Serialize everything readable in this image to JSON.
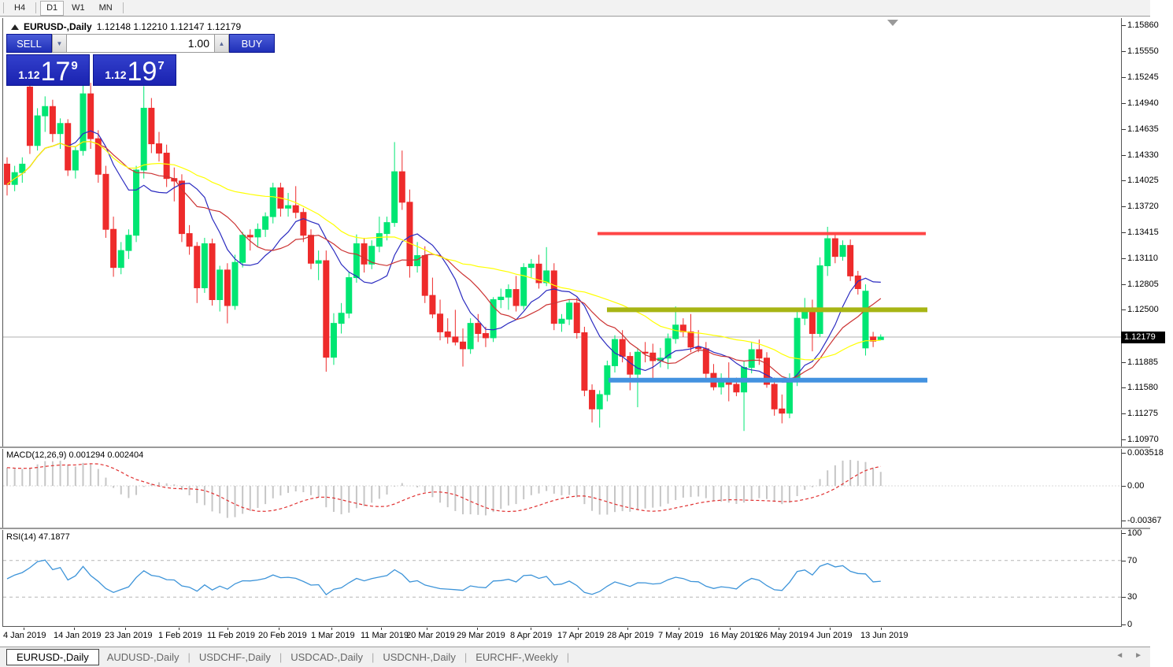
{
  "toolbar": {
    "timeframes": [
      {
        "label": "H4",
        "active": false
      },
      {
        "label": "D1",
        "active": true
      },
      {
        "label": "W1",
        "active": false
      },
      {
        "label": "MN",
        "active": false
      }
    ]
  },
  "chart_header": {
    "symbol": "EURUSD-,Daily",
    "ohlc_text": "1.12148 1.12210 1.12147 1.12179"
  },
  "trade_panel": {
    "sell_label": "SELL",
    "buy_label": "BUY",
    "volume": "1.00",
    "sell_quote": {
      "prefix": "1.12",
      "big": "17",
      "pip": "9"
    },
    "buy_quote": {
      "prefix": "1.12",
      "big": "19",
      "pip": "7"
    }
  },
  "indicators": {
    "macd_label": "MACD(12,26,9) 0.001294 0.002404",
    "rsi_label": "RSI(14) 47.1877"
  },
  "price_axis": {
    "ticks": [
      "1.15860",
      "1.15550",
      "1.15245",
      "1.14940",
      "1.14635",
      "1.14330",
      "1.14025",
      "1.13720",
      "1.13415",
      "1.13110",
      "1.12805",
      "1.12500",
      "1.11885",
      "1.11580",
      "1.11275",
      "1.10970"
    ],
    "current": "1.12179"
  },
  "macd_axis": [
    "0.003518",
    "0.00",
    "-0.00367"
  ],
  "rsi_axis": [
    "100",
    "70",
    "30",
    "0"
  ],
  "tabs": [
    {
      "label": "EURUSD-,Daily",
      "active": true
    },
    {
      "label": "AUDUSD-,Daily",
      "active": false
    },
    {
      "label": "USDCHF-,Daily",
      "active": false
    },
    {
      "label": "USDCAD-,Daily",
      "active": false
    },
    {
      "label": "USDCNH-,Daily",
      "active": false
    },
    {
      "label": "EURCHF-,Weekly",
      "active": false
    }
  ],
  "chart_data": {
    "type": "candlestick",
    "title": "EURUSD-,Daily",
    "ylim": [
      1.1097,
      1.1586
    ],
    "grid": false,
    "x_step": 9.65,
    "x_labels": [
      {
        "text": "4 Jan 2019",
        "x": 1
      },
      {
        "text": "14 Jan 2019",
        "x": 65
      },
      {
        "text": "23 Jan 2019",
        "x": 130
      },
      {
        "text": "1 Feb 2019",
        "x": 198
      },
      {
        "text": "11 Feb 2019",
        "x": 260
      },
      {
        "text": "20 Feb 2019",
        "x": 325
      },
      {
        "text": "1 Mar 2019",
        "x": 392
      },
      {
        "text": "11 Mar 2019",
        "x": 455
      },
      {
        "text": "20 Mar 2019",
        "x": 513
      },
      {
        "text": "29 Mar 2019",
        "x": 577
      },
      {
        "text": "8 Apr 2019",
        "x": 645
      },
      {
        "text": "17 Apr 2019",
        "x": 705
      },
      {
        "text": "28 Apr 2019",
        "x": 768
      },
      {
        "text": "7 May 2019",
        "x": 833
      },
      {
        "text": "16 May 2019",
        "x": 898
      },
      {
        "text": "26 May 2019",
        "x": 960
      },
      {
        "text": "4 Jun 2019",
        "x": 1025
      },
      {
        "text": "13 Jun 2019",
        "x": 1090
      }
    ],
    "current_price": 1.12179,
    "hlines": [
      {
        "name": "resistance-red",
        "price": 1.134,
        "x1": 755,
        "x2": 1172,
        "width": 4,
        "color": "#ff4646"
      },
      {
        "name": "pivot-olive",
        "price": 1.125,
        "x1": 767,
        "x2": 1174,
        "width": 6,
        "color": "#a7b514"
      },
      {
        "name": "support-blue",
        "price": 1.1167,
        "x1": 769,
        "x2": 1174,
        "width": 6,
        "color": "#4392e0"
      }
    ],
    "moving_averages": [
      {
        "name": "ma-fast",
        "period": 9,
        "color": "#2b2bc0"
      },
      {
        "name": "ma-mid",
        "period": 13,
        "color": "#cc3333"
      },
      {
        "name": "ma-slow",
        "period": 34,
        "color": "#ffff00"
      }
    ],
    "macd": {
      "fast": 12,
      "slow": 26,
      "signal": 9,
      "value": 0.001294,
      "signal_value": 0.002404,
      "hist_color": "#c6c6c6",
      "signal_color": "#e03030",
      "ymax": 0.003518,
      "ymin": -0.00367
    },
    "rsi": {
      "period": 14,
      "value": 47.1877,
      "color": "#3d94d9",
      "levels": [
        70,
        30
      ]
    },
    "colors": {
      "up": "#00e673",
      "down": "#ee2b2b",
      "price_line": "#b0b0b0"
    },
    "candles": [
      [
        1.1422,
        1.143,
        1.1385,
        1.1398
      ],
      [
        1.1398,
        1.142,
        1.139,
        1.1412
      ],
      [
        1.1412,
        1.143,
        1.14,
        1.1422
      ],
      [
        1.1513,
        1.152,
        1.1434,
        1.1444
      ],
      [
        1.1444,
        1.1488,
        1.1438,
        1.1479
      ],
      [
        1.1479,
        1.1502,
        1.146,
        1.149
      ],
      [
        1.149,
        1.1498,
        1.1448,
        1.1458
      ],
      [
        1.1458,
        1.1476,
        1.144,
        1.147
      ],
      [
        1.147,
        1.1475,
        1.1408,
        1.1415
      ],
      [
        1.1415,
        1.1442,
        1.1405,
        1.1438
      ],
      [
        1.1438,
        1.1515,
        1.1432,
        1.1505
      ],
      [
        1.1505,
        1.1518,
        1.144,
        1.1452
      ],
      [
        1.1452,
        1.1462,
        1.14,
        1.141
      ],
      [
        1.141,
        1.142,
        1.1335,
        1.1345
      ],
      [
        1.1345,
        1.136,
        1.1289,
        1.13
      ],
      [
        1.13,
        1.133,
        1.1292,
        1.132
      ],
      [
        1.132,
        1.1345,
        1.131,
        1.1338
      ],
      [
        1.1338,
        1.142,
        1.133,
        1.1415
      ],
      [
        1.1415,
        1.1514,
        1.1405,
        1.1488
      ],
      [
        1.1488,
        1.15,
        1.1435,
        1.1446
      ],
      [
        1.1446,
        1.146,
        1.1425,
        1.1435
      ],
      [
        1.1435,
        1.1445,
        1.1395,
        1.1405
      ],
      [
        1.1405,
        1.1418,
        1.1378,
        1.1402
      ],
      [
        1.1402,
        1.141,
        1.133,
        1.134
      ],
      [
        1.134,
        1.135,
        1.1315,
        1.1325
      ],
      [
        1.1325,
        1.133,
        1.1258,
        1.1276
      ],
      [
        1.1276,
        1.1335,
        1.127,
        1.1328
      ],
      [
        1.1328,
        1.1334,
        1.1255,
        1.1262
      ],
      [
        1.1262,
        1.1302,
        1.1248,
        1.1297
      ],
      [
        1.1297,
        1.1305,
        1.1234,
        1.1255
      ],
      [
        1.1255,
        1.1315,
        1.125,
        1.1306
      ],
      [
        1.1306,
        1.1342,
        1.13,
        1.1338
      ],
      [
        1.1338,
        1.1345,
        1.132,
        1.1336
      ],
      [
        1.1336,
        1.1352,
        1.1325,
        1.1345
      ],
      [
        1.1345,
        1.1365,
        1.1336,
        1.136
      ],
      [
        1.136,
        1.14,
        1.1352,
        1.1394
      ],
      [
        1.1394,
        1.14,
        1.136,
        1.137
      ],
      [
        1.137,
        1.1388,
        1.136,
        1.1373
      ],
      [
        1.1373,
        1.1396,
        1.1358,
        1.1365
      ],
      [
        1.1365,
        1.137,
        1.133,
        1.1338
      ],
      [
        1.1338,
        1.1345,
        1.1298,
        1.1305
      ],
      [
        1.1305,
        1.132,
        1.1285,
        1.1308
      ],
      [
        1.1308,
        1.132,
        1.1177,
        1.1194
      ],
      [
        1.1194,
        1.1246,
        1.1185,
        1.1234
      ],
      [
        1.1234,
        1.1258,
        1.1222,
        1.1246
      ],
      [
        1.1246,
        1.1295,
        1.124,
        1.1288
      ],
      [
        1.1288,
        1.1339,
        1.1282,
        1.1328
      ],
      [
        1.1328,
        1.1335,
        1.1294,
        1.1304
      ],
      [
        1.1304,
        1.1332,
        1.1298,
        1.1325
      ],
      [
        1.1325,
        1.136,
        1.1318,
        1.134
      ],
      [
        1.134,
        1.136,
        1.1332,
        1.1353
      ],
      [
        1.1353,
        1.1448,
        1.1348,
        1.1413
      ],
      [
        1.1413,
        1.1438,
        1.1368,
        1.1377
      ],
      [
        1.1377,
        1.1392,
        1.1288,
        1.1302
      ],
      [
        1.1302,
        1.133,
        1.1294,
        1.1314
      ],
      [
        1.1314,
        1.1325,
        1.1258,
        1.1267
      ],
      [
        1.1267,
        1.1288,
        1.124,
        1.1245
      ],
      [
        1.1245,
        1.1262,
        1.1214,
        1.1224
      ],
      [
        1.1224,
        1.124,
        1.121,
        1.1218
      ],
      [
        1.1218,
        1.125,
        1.1208,
        1.1212
      ],
      [
        1.1212,
        1.1228,
        1.1183,
        1.1204
      ],
      [
        1.1204,
        1.124,
        1.1198,
        1.1234
      ],
      [
        1.1234,
        1.1245,
        1.1212,
        1.1222
      ],
      [
        1.1222,
        1.123,
        1.1206,
        1.1217
      ],
      [
        1.1217,
        1.1265,
        1.1212,
        1.1262
      ],
      [
        1.1262,
        1.1275,
        1.1252,
        1.1265
      ],
      [
        1.1265,
        1.128,
        1.125,
        1.1274
      ],
      [
        1.1274,
        1.129,
        1.1248,
        1.1255
      ],
      [
        1.1255,
        1.1305,
        1.125,
        1.13
      ],
      [
        1.13,
        1.131,
        1.1288,
        1.1304
      ],
      [
        1.1304,
        1.1315,
        1.1275,
        1.1282
      ],
      [
        1.1282,
        1.1324,
        1.1278,
        1.1296
      ],
      [
        1.1296,
        1.1305,
        1.1226,
        1.1234
      ],
      [
        1.1234,
        1.1245,
        1.1224,
        1.1239
      ],
      [
        1.1239,
        1.1262,
        1.1232,
        1.1258
      ],
      [
        1.1258,
        1.1264,
        1.1216,
        1.1223
      ],
      [
        1.1223,
        1.123,
        1.1148,
        1.1155
      ],
      [
        1.1155,
        1.1162,
        1.1117,
        1.1133
      ],
      [
        1.1133,
        1.1155,
        1.1111,
        1.115
      ],
      [
        1.115,
        1.119,
        1.1142,
        1.1184
      ],
      [
        1.1184,
        1.122,
        1.1176,
        1.1215
      ],
      [
        1.1215,
        1.1226,
        1.1188,
        1.1195
      ],
      [
        1.1195,
        1.12,
        1.1155,
        1.1174
      ],
      [
        1.1174,
        1.1205,
        1.1135,
        1.12
      ],
      [
        1.12,
        1.1212,
        1.1188,
        1.1199
      ],
      [
        1.1199,
        1.121,
        1.1168,
        1.119
      ],
      [
        1.119,
        1.1205,
        1.1182,
        1.1193
      ],
      [
        1.1193,
        1.1222,
        1.118,
        1.1216
      ],
      [
        1.1216,
        1.1254,
        1.121,
        1.1232
      ],
      [
        1.1232,
        1.124,
        1.1218,
        1.1224
      ],
      [
        1.1224,
        1.1245,
        1.12,
        1.1206
      ],
      [
        1.1206,
        1.1226,
        1.12,
        1.1204
      ],
      [
        1.1204,
        1.1212,
        1.1166,
        1.1175
      ],
      [
        1.1175,
        1.1186,
        1.1155,
        1.1159
      ],
      [
        1.1159,
        1.1175,
        1.115,
        1.1167
      ],
      [
        1.1167,
        1.1188,
        1.1142,
        1.1162
      ],
      [
        1.1162,
        1.117,
        1.1148,
        1.1153
      ],
      [
        1.1153,
        1.119,
        1.1107,
        1.1182
      ],
      [
        1.1182,
        1.1212,
        1.1175,
        1.1203
      ],
      [
        1.1203,
        1.1215,
        1.1185,
        1.1193
      ],
      [
        1.1193,
        1.12,
        1.1158,
        1.1162
      ],
      [
        1.1162,
        1.117,
        1.1125,
        1.1133
      ],
      [
        1.1133,
        1.115,
        1.1116,
        1.1128
      ],
      [
        1.1128,
        1.1175,
        1.1122,
        1.1168
      ],
      [
        1.1168,
        1.1248,
        1.116,
        1.124
      ],
      [
        1.124,
        1.1264,
        1.1232,
        1.1252
      ],
      [
        1.1252,
        1.1262,
        1.1201,
        1.1222
      ],
      [
        1.1222,
        1.1312,
        1.1218,
        1.1302
      ],
      [
        1.1302,
        1.1348,
        1.129,
        1.1334
      ],
      [
        1.1334,
        1.134,
        1.1305,
        1.1313
      ],
      [
        1.1313,
        1.1332,
        1.1308,
        1.1326
      ],
      [
        1.1326,
        1.1333,
        1.1284,
        1.129
      ],
      [
        1.129,
        1.1296,
        1.1268,
        1.1275
      ],
      [
        1.1205,
        1.128,
        1.1196,
        1.1272
      ],
      [
        1.1218,
        1.1224,
        1.1206,
        1.1213
      ],
      [
        1.12148,
        1.1221,
        1.12147,
        1.12179
      ]
    ]
  }
}
